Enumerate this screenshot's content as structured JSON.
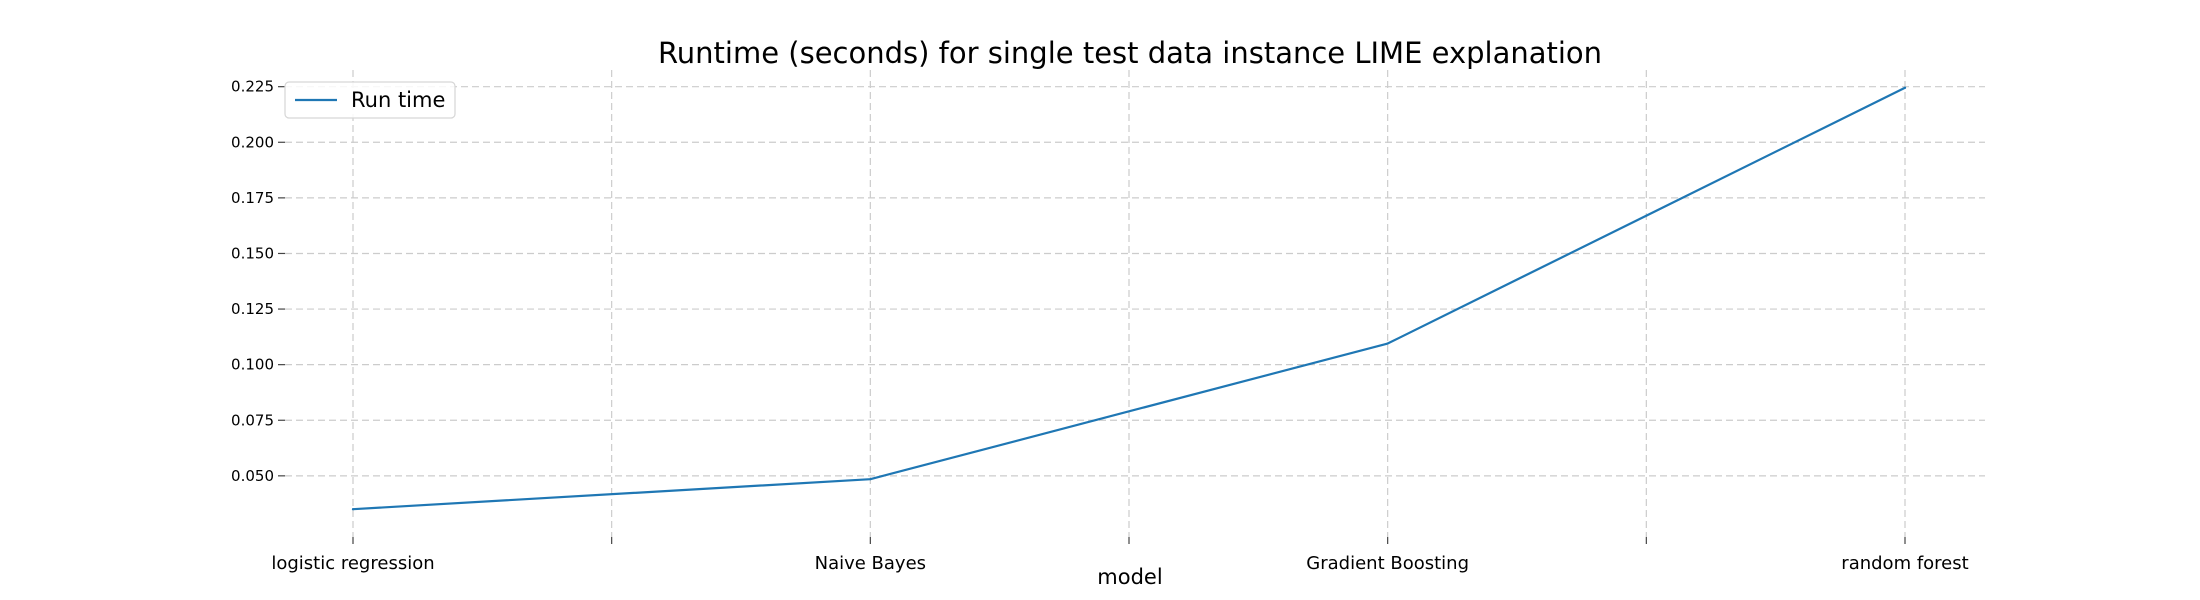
{
  "chart_data": {
    "type": "line",
    "title": "Runtime (seconds) for single test data instance LIME explanation",
    "xlabel": "model",
    "ylabel": "",
    "categories": [
      "logistic regression",
      "Naive Bayes",
      "Gradient Boosting",
      "random forest"
    ],
    "series": [
      {
        "name": "Run time",
        "values": [
          0.035,
          0.0485,
          0.1095,
          0.2245
        ],
        "color": "#1f77b4"
      }
    ],
    "yticks": [
      0.05,
      0.075,
      0.1,
      0.125,
      0.15,
      0.175,
      0.2,
      0.225
    ],
    "ytick_labels": [
      "0.050",
      "0.075",
      "0.100",
      "0.125",
      "0.150",
      "0.175",
      "0.200",
      "0.225"
    ],
    "ylim": [
      0.0225,
      0.2325
    ],
    "grid": true,
    "legend_position": "top-left"
  }
}
